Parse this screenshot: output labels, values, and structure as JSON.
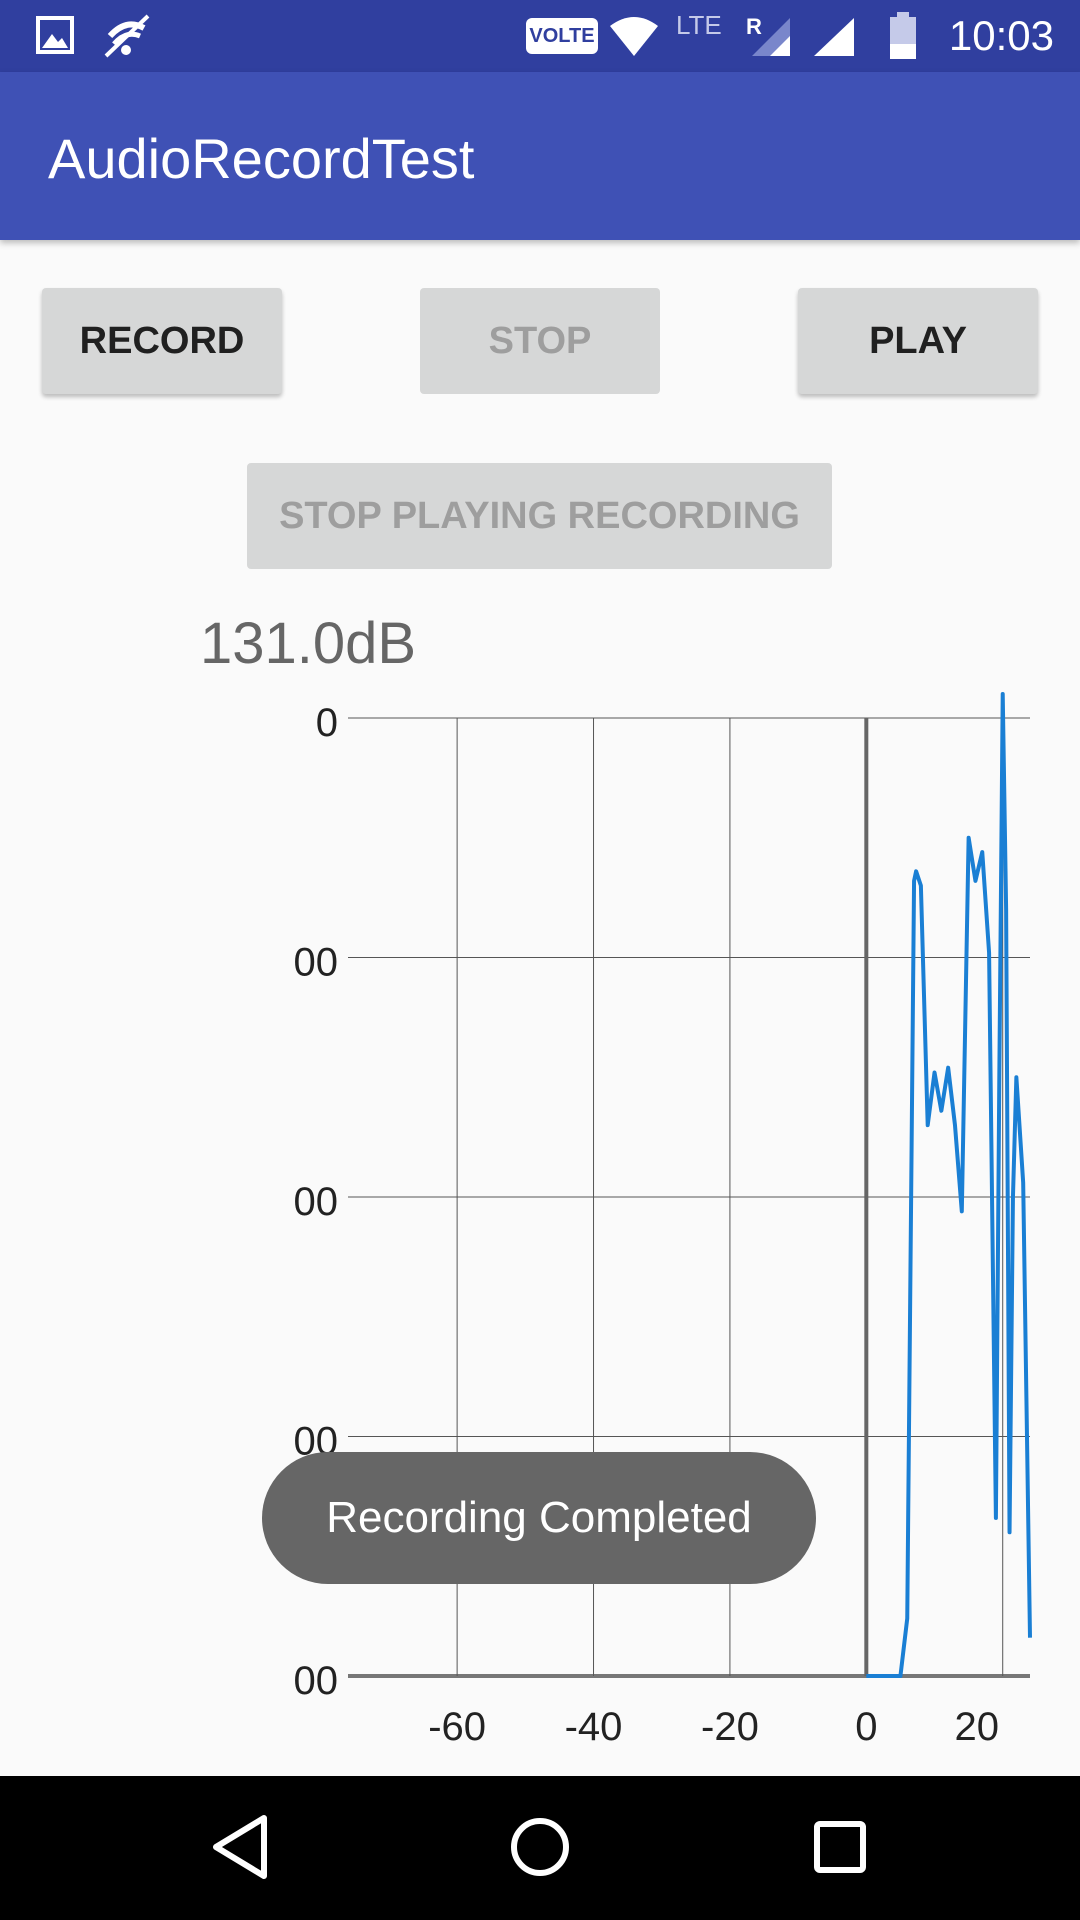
{
  "status_bar": {
    "time": "10:03",
    "volte_label": "VOLTE",
    "lte_label": "LTE",
    "roaming_label": "R",
    "icons": [
      "image-icon",
      "mute-icon",
      "wifi-icon",
      "signal-icon",
      "signal-icon",
      "battery-icon"
    ]
  },
  "app_bar": {
    "title": "AudioRecordTest"
  },
  "controls": {
    "record_label": "RECORD",
    "stop_label": "STOP",
    "play_label": "PLAY",
    "stop_playing_label": "STOP PLAYING RECORDING"
  },
  "level": {
    "db_text": "131.0dB"
  },
  "chart_data": {
    "type": "line",
    "y_tick_labels": [
      "00",
      "00",
      "00",
      "00",
      "0"
    ],
    "x_tick_labels": [
      "-60",
      "-40",
      "-20",
      "0",
      "20"
    ],
    "x_ticks": [
      -60,
      -40,
      -20,
      0,
      20
    ],
    "xlim": [
      -76,
      24
    ],
    "ylim": [
      0,
      200
    ],
    "y_grid": [
      0,
      50,
      100,
      150,
      200
    ],
    "x_grid": [
      -60,
      -40,
      -20,
      0,
      20
    ],
    "grid": true,
    "series": [
      {
        "color": "#1a7fd4",
        "x": [
          0,
          5,
          6,
          7,
          7.3,
          8,
          9,
          10,
          11,
          12,
          13,
          14,
          15,
          16,
          17,
          18,
          19,
          19.5,
          20,
          20.5,
          21,
          21.5,
          22,
          23,
          24
        ],
        "y": [
          0,
          0,
          12,
          166,
          168,
          165,
          115,
          126,
          118,
          127,
          115,
          97,
          175,
          166,
          172,
          151,
          33,
          125,
          205,
          160,
          30,
          100,
          125,
          103,
          8
        ]
      }
    ]
  },
  "toast": {
    "message": "Recording Completed"
  },
  "nav_bar": {
    "icons": [
      "back-icon",
      "home-icon",
      "recents-icon"
    ]
  }
}
